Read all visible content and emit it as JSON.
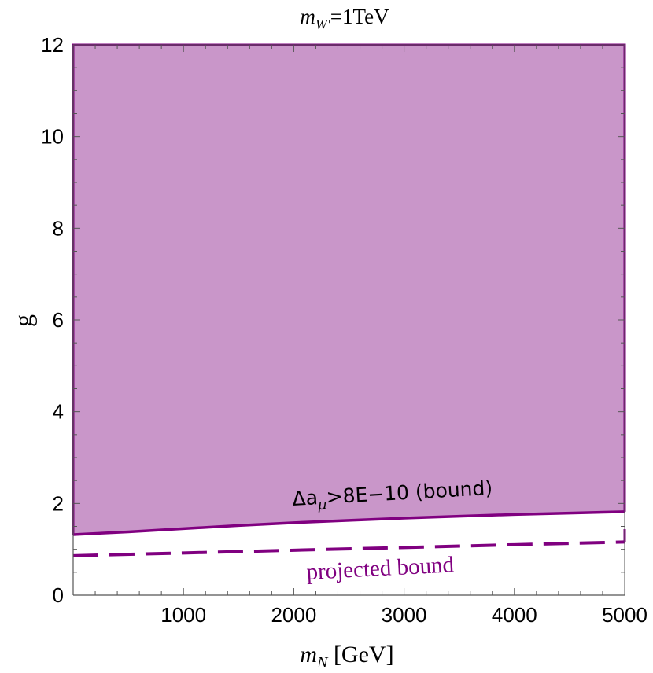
{
  "chart_data": {
    "type": "area",
    "title": {
      "var": "m",
      "sub": "W'",
      "rest": "=1TeV"
    },
    "xlabel": {
      "var": "m",
      "sub": "N",
      "unit": " [GeV]"
    },
    "ylabel": "g",
    "xlim": [
      0,
      5000
    ],
    "ylim": [
      0,
      12
    ],
    "xticks": [
      1000,
      2000,
      3000,
      4000,
      5000
    ],
    "yticks": [
      0,
      2,
      4,
      6,
      8,
      10,
      12
    ],
    "grid": false,
    "series": [
      {
        "style": "solid-fill-above",
        "x": [
          0,
          500,
          1000,
          1500,
          2000,
          2500,
          3000,
          3500,
          4000,
          4500,
          5000
        ],
        "y": [
          1.32,
          1.38,
          1.45,
          1.52,
          1.58,
          1.63,
          1.68,
          1.72,
          1.76,
          1.79,
          1.82
        ]
      },
      {
        "style": "dashed",
        "x": [
          0,
          1000,
          2000,
          3000,
          4000,
          5000
        ],
        "y": [
          0.86,
          0.92,
          0.98,
          1.04,
          1.1,
          1.16
        ]
      }
    ],
    "annotations": {
      "bound": {
        "prefix": "Δa",
        "sub": "μ",
        "suffix": ">8E−10 (bound)"
      },
      "projected": "projected bound"
    },
    "colors": {
      "fill": "#c996c9",
      "line": "#800080",
      "axis": "#555555"
    }
  }
}
